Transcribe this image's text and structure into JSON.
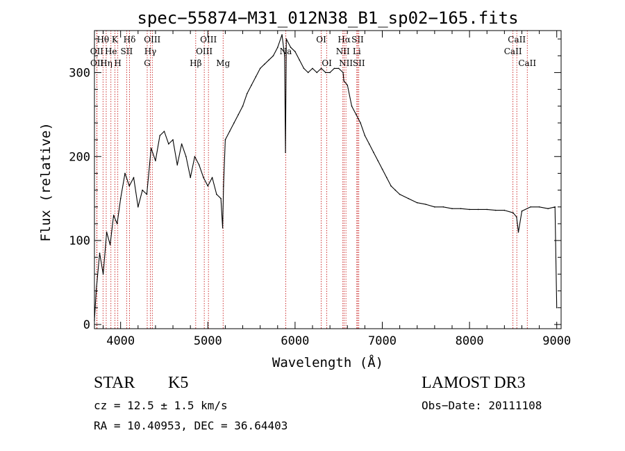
{
  "chart_data": {
    "type": "line",
    "title": "spec−55874−M31_012N38_B1_sp02−165.fits",
    "xlabel": "Wavelength (Å)",
    "ylabel": "Flux (relative)",
    "xlim": [
      3700,
      9050
    ],
    "ylim": [
      -5,
      350
    ],
    "x_ticks": [
      4000,
      5000,
      6000,
      7000,
      8000,
      9000
    ],
    "x_tick_labels": [
      "4000",
      "5000",
      "6000",
      "7000",
      "8000",
      "9000"
    ],
    "y_ticks": [
      0,
      100,
      200,
      300
    ],
    "y_tick_labels": [
      "0",
      "100",
      "200",
      "300"
    ],
    "series": [
      {
        "name": "spectrum",
        "x": [
          3700,
          3720,
          3760,
          3800,
          3840,
          3880,
          3920,
          3960,
          4000,
          4050,
          4100,
          4150,
          4200,
          4250,
          4300,
          4350,
          4400,
          4450,
          4500,
          4550,
          4600,
          4650,
          4700,
          4750,
          4800,
          4850,
          4900,
          4950,
          5000,
          5050,
          5100,
          5150,
          5170,
          5180,
          5200,
          5250,
          5300,
          5350,
          5400,
          5450,
          5500,
          5550,
          5600,
          5650,
          5700,
          5750,
          5800,
          5850,
          5880,
          5890,
          5900,
          5950,
          6000,
          6050,
          6100,
          6150,
          6200,
          6250,
          6300,
          6350,
          6400,
          6450,
          6500,
          6550,
          6560,
          6600,
          6650,
          6700,
          6750,
          6800,
          6850,
          6900,
          6950,
          7000,
          7050,
          7100,
          7150,
          7200,
          7300,
          7400,
          7500,
          7600,
          7700,
          7800,
          7900,
          8000,
          8100,
          8200,
          8300,
          8400,
          8500,
          8540,
          8560,
          8600,
          8700,
          8800,
          8900,
          8980,
          9000
        ],
        "y": [
          5,
          40,
          85,
          60,
          110,
          95,
          130,
          120,
          150,
          180,
          165,
          175,
          140,
          160,
          155,
          210,
          195,
          225,
          230,
          215,
          220,
          190,
          215,
          200,
          175,
          200,
          190,
          175,
          165,
          175,
          155,
          150,
          115,
          165,
          220,
          230,
          240,
          250,
          260,
          275,
          285,
          295,
          305,
          310,
          315,
          320,
          330,
          345,
          320,
          205,
          340,
          330,
          325,
          315,
          305,
          300,
          305,
          300,
          305,
          300,
          300,
          305,
          305,
          300,
          290,
          285,
          260,
          250,
          240,
          225,
          215,
          205,
          195,
          185,
          175,
          165,
          160,
          155,
          150,
          145,
          143,
          140,
          140,
          138,
          138,
          137,
          137,
          137,
          136,
          136,
          133,
          128,
          110,
          135,
          140,
          140,
          138,
          140,
          20
        ]
      }
    ],
    "line_markers": [
      {
        "label": "Hθ",
        "wavelength": 3798,
        "row": 1
      },
      {
        "label": "OII",
        "wavelength": 3727,
        "row": 2
      },
      {
        "label": "OII",
        "wavelength": 3729,
        "row": 3
      },
      {
        "label": "Hη",
        "wavelength": 3835,
        "row": 3
      },
      {
        "label": "He",
        "wavelength": 3889,
        "row": 2
      },
      {
        "label": "K",
        "wavelength": 3934,
        "row": 1
      },
      {
        "label": "SII",
        "wavelength": 4069,
        "row": 2
      },
      {
        "label": "H",
        "wavelength": 3968,
        "row": 3
      },
      {
        "label": "Hδ",
        "wavelength": 4102,
        "row": 1
      },
      {
        "label": "OIII",
        "wavelength": 4363,
        "row": 1
      },
      {
        "label": "Hγ",
        "wavelength": 4341,
        "row": 2
      },
      {
        "label": "G",
        "wavelength": 4305,
        "row": 3
      },
      {
        "label": "Hβ",
        "wavelength": 4861,
        "row": 3
      },
      {
        "label": "OIII",
        "wavelength": 5007,
        "row": 1
      },
      {
        "label": "OIII",
        "wavelength": 4959,
        "row": 2
      },
      {
        "label": "Mg",
        "wavelength": 5175,
        "row": 3
      },
      {
        "label": "Na",
        "wavelength": 5893,
        "row": 2
      },
      {
        "label": "OI",
        "wavelength": 6300,
        "row": 1
      },
      {
        "label": "OI",
        "wavelength": 6364,
        "row": 3
      },
      {
        "label": "Hα",
        "wavelength": 6563,
        "row": 1
      },
      {
        "label": "NII",
        "wavelength": 6548,
        "row": 2
      },
      {
        "label": "NII",
        "wavelength": 6583,
        "row": 3
      },
      {
        "label": "SII",
        "wavelength": 6717,
        "row": 1
      },
      {
        "label": "Li",
        "wavelength": 6708,
        "row": 2
      },
      {
        "label": "SII",
        "wavelength": 6731,
        "row": 3
      },
      {
        "label": "CaII",
        "wavelength": 8542,
        "row": 1
      },
      {
        "label": "CaII",
        "wavelength": 8498,
        "row": 2
      },
      {
        "label": "CaII",
        "wavelength": 8662,
        "row": 3
      }
    ]
  },
  "info": {
    "class": "STAR",
    "subclass": "K5",
    "survey": "LAMOST DR3",
    "cz": "cz = 12.5 ± 1.5 km/s",
    "obs_date": "Obs−Date: 20111108",
    "coords": "RA =  10.40953, DEC =  36.64403"
  }
}
